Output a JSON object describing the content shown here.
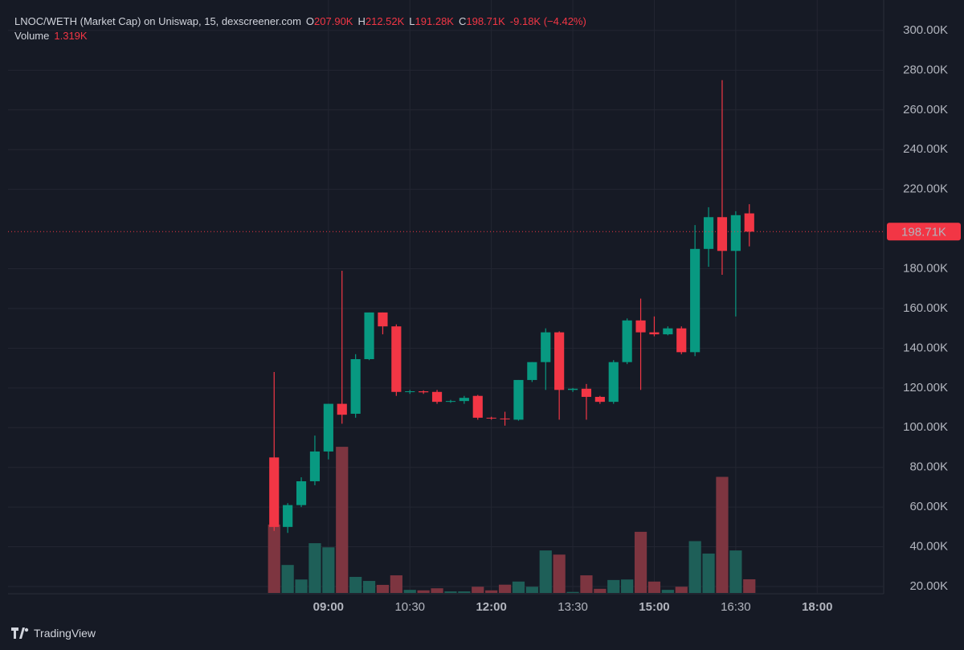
{
  "chart_data": {
    "type": "candlestick",
    "title": "LNOC/WETH (Market Cap) on Uniswap, 15, dexscreener.com",
    "legend": {
      "ohlc": [
        {
          "letter": "O",
          "label": "207.90K"
        },
        {
          "letter": "H",
          "label": "212.52K"
        },
        {
          "letter": "L",
          "label": "191.28K"
        },
        {
          "letter": "C",
          "label": "198.71K"
        }
      ],
      "change": "-9.18K (−4.42%)"
    },
    "x": [
      480,
      495,
      510,
      525,
      540,
      555,
      570,
      585,
      600,
      615,
      630,
      645,
      660,
      675,
      690,
      705,
      720,
      735,
      750,
      765,
      780,
      795,
      810,
      825,
      840,
      855,
      870,
      885,
      900,
      915,
      930,
      945,
      960,
      975,
      990,
      1005
    ],
    "open": [
      85,
      50,
      61,
      73,
      88,
      112,
      107,
      134.5,
      158,
      151,
      118,
      118.3,
      118,
      113,
      113.4,
      116,
      105,
      104.6,
      104,
      124,
      133,
      148,
      119,
      119.6,
      115.5,
      113,
      133,
      154,
      148,
      147,
      150,
      138,
      190,
      206,
      189,
      207.9
    ],
    "high": [
      128,
      62,
      75,
      96,
      112,
      179,
      137,
      158,
      158,
      152,
      119,
      118.8,
      119,
      114,
      116,
      116.5,
      105.5,
      108,
      124,
      133,
      150,
      148.5,
      120,
      122,
      116,
      134,
      155,
      165,
      156,
      151,
      151,
      202,
      211,
      275,
      209,
      212.52
    ],
    "low": [
      48,
      47,
      60,
      71,
      84,
      102,
      105,
      134,
      147,
      116,
      117,
      117,
      112,
      112.5,
      112,
      104,
      104,
      101,
      103.5,
      123,
      119,
      104,
      118,
      104,
      112,
      112,
      132,
      119,
      146,
      146.5,
      137,
      136,
      181,
      177,
      156,
      191.28
    ],
    "close": [
      50,
      61,
      73,
      88,
      112,
      106.5,
      134.5,
      158,
      151,
      118,
      118.3,
      117.8,
      113,
      113.4,
      115,
      105,
      104.6,
      104.2,
      124,
      133,
      148,
      119,
      119.6,
      115.5,
      113,
      133,
      154,
      148,
      147,
      150,
      138,
      190,
      206,
      189,
      207,
      198.71
    ],
    "up_color": "#089981",
    "down_color": "#f23645",
    "price_label": "198.71K",
    "volume": {
      "name": "Volume",
      "last_label": "1.319K",
      "up_color": "#1e5f58",
      "down_color": "#7d3540",
      "values": [
        6.6,
        2.7,
        1.3,
        4.8,
        4.4,
        14.1,
        1.55,
        1.16,
        0.78,
        1.7,
        0.3,
        0.25,
        0.45,
        0.15,
        0.15,
        0.6,
        0.25,
        0.8,
        1.1,
        0.6,
        4.1,
        3.7,
        0.1,
        1.7,
        0.4,
        1.25,
        1.3,
        5.9,
        1.1,
        0.3,
        0.6,
        5.0,
        3.8,
        11.2,
        4.1,
        1.319
      ]
    },
    "xlim": [
      186,
      1149
    ],
    "xticks": [
      {
        "value": 540,
        "label": "09:00"
      },
      {
        "value": 630,
        "label": "10:30"
      },
      {
        "value": 720,
        "label": "12:00"
      },
      {
        "value": 810,
        "label": "13:30"
      },
      {
        "value": 900,
        "label": "15:00"
      },
      {
        "value": 990,
        "label": "16:30"
      },
      {
        "value": 1080,
        "label": "18:00"
      }
    ],
    "ylim": [
      16.76,
      311.3
    ],
    "yticks": [
      {
        "value": 20,
        "label": "20.00K"
      },
      {
        "value": 40,
        "label": "40.00K"
      },
      {
        "value": 60,
        "label": "60.00K"
      },
      {
        "value": 80,
        "label": "80.00K"
      },
      {
        "value": 100,
        "label": "100.00K"
      },
      {
        "value": 120,
        "label": "120.00K"
      },
      {
        "value": 140,
        "label": "140.00K"
      },
      {
        "value": 160,
        "label": "160.00K"
      },
      {
        "value": 180,
        "label": "180.00K"
      },
      {
        "value": 220,
        "label": "220.00K"
      },
      {
        "value": 240,
        "label": "240.00K"
      },
      {
        "value": 260,
        "label": "260.00K"
      },
      {
        "value": 280,
        "label": "280.00K"
      },
      {
        "value": 300,
        "label": "300.00K"
      }
    ],
    "grid": true
  },
  "footer": {
    "brand": "TradingView"
  }
}
